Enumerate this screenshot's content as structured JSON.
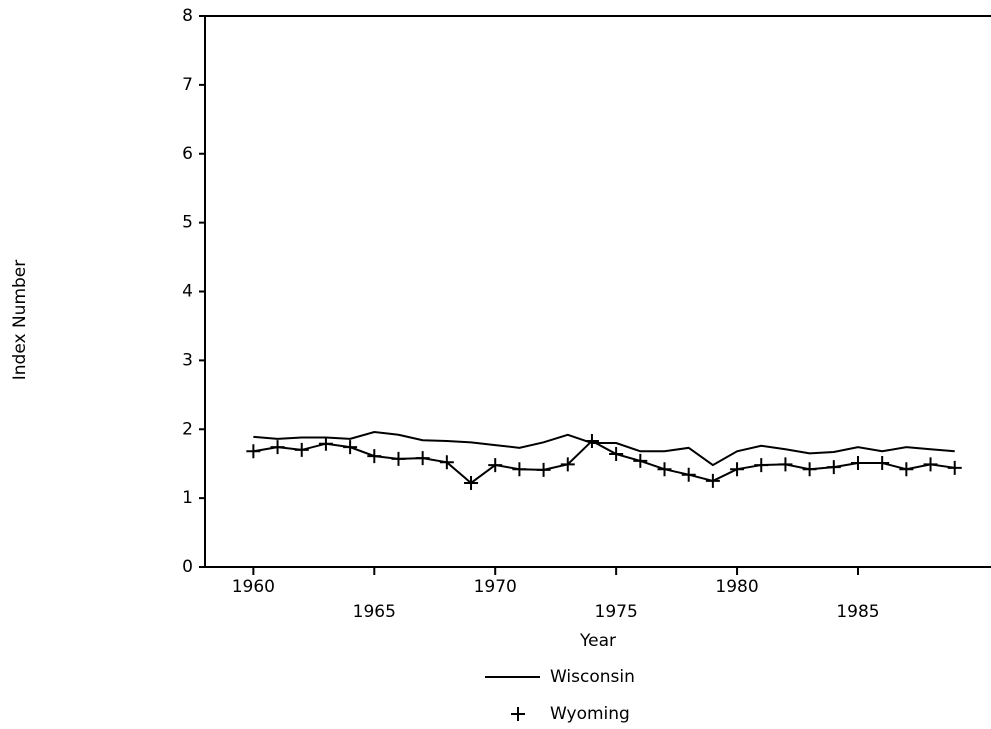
{
  "chart_data": {
    "type": "line",
    "x_label": "Year",
    "y_label": "Index Number",
    "x": [
      1960,
      1961,
      1962,
      1963,
      1964,
      1965,
      1966,
      1967,
      1968,
      1969,
      1970,
      1971,
      1972,
      1973,
      1974,
      1975,
      1976,
      1977,
      1978,
      1979,
      1980,
      1981,
      1982,
      1983,
      1984,
      1985,
      1986,
      1987,
      1988,
      1989
    ],
    "series": [
      {
        "name": "Wisconsin",
        "color": "#000000",
        "marker": "none",
        "values": [
          1.89,
          1.86,
          1.88,
          1.88,
          1.86,
          1.96,
          1.92,
          1.84,
          1.83,
          1.81,
          1.77,
          1.73,
          1.81,
          1.92,
          1.8,
          1.8,
          1.68,
          1.68,
          1.73,
          1.48,
          1.68,
          1.76,
          1.71,
          1.65,
          1.67,
          1.74,
          1.68,
          1.74,
          1.71,
          1.68
        ]
      },
      {
        "name": "Wyoming",
        "color": "#000000",
        "marker": "plus",
        "values": [
          1.68,
          1.74,
          1.7,
          1.79,
          1.74,
          1.61,
          1.57,
          1.58,
          1.52,
          1.22,
          1.48,
          1.42,
          1.41,
          1.49,
          1.83,
          1.64,
          1.54,
          1.42,
          1.34,
          1.25,
          1.42,
          1.48,
          1.49,
          1.42,
          1.45,
          1.51,
          1.51,
          1.42,
          1.49,
          1.44
        ]
      }
    ],
    "xlim": [
      1958,
      1990.5
    ],
    "xticks": [
      1960,
      1965,
      1970,
      1975,
      1980,
      1985
    ],
    "ylim": [
      0,
      8
    ],
    "yticks": [
      0,
      1,
      2,
      3,
      4,
      5,
      6,
      7,
      8
    ],
    "grid": false
  }
}
